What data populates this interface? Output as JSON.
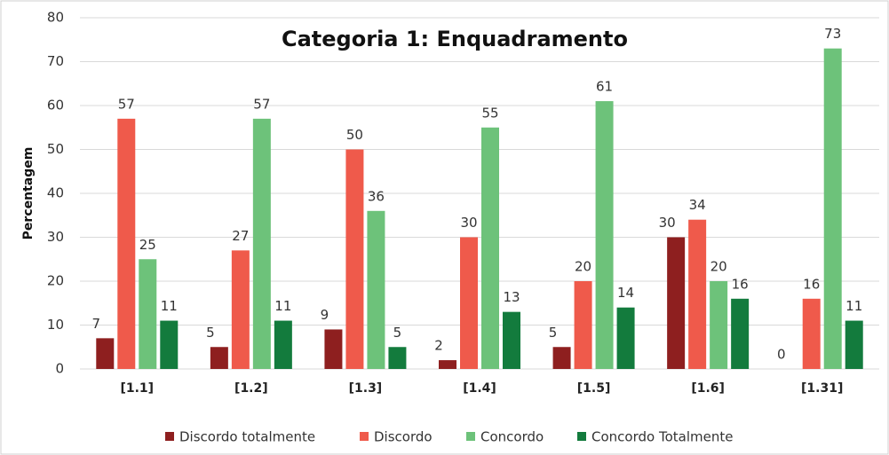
{
  "chart_data": {
    "type": "bar",
    "title": "Categoria 1: Enquadramento",
    "y_label": "Percentagem",
    "categories": [
      "[1.1]",
      "[1.2]",
      "[1.3]",
      "[1.4]",
      "[1.5]",
      "[1.6]",
      "[1.31]"
    ],
    "series": [
      {
        "name": "Discordo totalmente",
        "color": "#8e1f1f",
        "values": [
          7,
          5,
          9,
          2,
          5,
          30,
          0
        ]
      },
      {
        "name": "Discordo",
        "color": "#ef5a4b",
        "values": [
          57,
          27,
          50,
          30,
          20,
          34,
          16
        ]
      },
      {
        "name": "Concordo",
        "color": "#6dc27a",
        "values": [
          25,
          57,
          36,
          55,
          61,
          20,
          73
        ]
      },
      {
        "name": "Concordo Totalmente",
        "color": "#137b3d",
        "values": [
          11,
          11,
          5,
          13,
          14,
          16,
          11
        ]
      }
    ],
    "ylim": [
      0,
      80
    ],
    "yticks": [
      0,
      10,
      20,
      30,
      40,
      50,
      60,
      70,
      80
    ],
    "grid": true,
    "legend": "bottom"
  }
}
